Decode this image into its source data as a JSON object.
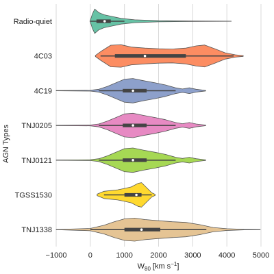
{
  "chart_data": {
    "type": "violin",
    "orientation": "horizontal",
    "xlabel_main": "W",
    "xlabel_sub": "80",
    "xlabel_unit": "[km s",
    "xlabel_exp": "−1",
    "xlabel_close": "]",
    "ylabel": "AGN Types",
    "xlim": [
      -1000,
      5000
    ],
    "xticks": [
      {
        "value": -1000,
        "label": "−1000"
      },
      {
        "value": 0,
        "label": "0"
      },
      {
        "value": 1000,
        "label": "1000"
      },
      {
        "value": 2000,
        "label": "2000"
      },
      {
        "value": 3000,
        "label": "3000"
      },
      {
        "value": 4000,
        "label": "4000"
      },
      {
        "value": 5000,
        "label": "5000"
      }
    ],
    "grid": true,
    "series": [
      {
        "name": "Radio-quiet",
        "color": "#66c2a5",
        "line_range": [
          -20,
          4130
        ],
        "whisker": [
          0,
          1000
        ],
        "iqr": [
          180,
          600
        ],
        "median": 420,
        "density": [
          [
            0,
            0.05
          ],
          [
            60,
            0.5
          ],
          [
            130,
            0.85
          ],
          [
            250,
            0.6
          ],
          [
            400,
            0.45
          ],
          [
            600,
            0.35
          ],
          [
            900,
            0.2
          ],
          [
            1300,
            0.1
          ],
          [
            2000,
            0.04
          ],
          [
            3000,
            0.015
          ],
          [
            4130,
            0.005
          ]
        ]
      },
      {
        "name": "4C03",
        "color": "#fc8d62",
        "line_range": [
          140,
          4480
        ],
        "whisker": [
          300,
          4200
        ],
        "iqr": [
          720,
          2800
        ],
        "median": 1600,
        "density": [
          [
            150,
            0.04
          ],
          [
            300,
            0.3
          ],
          [
            600,
            0.75
          ],
          [
            900,
            0.78
          ],
          [
            1200,
            0.62
          ],
          [
            1600,
            0.55
          ],
          [
            2000,
            0.5
          ],
          [
            2400,
            0.48
          ],
          [
            2800,
            0.55
          ],
          [
            3100,
            0.7
          ],
          [
            3350,
            0.76
          ],
          [
            3650,
            0.5
          ],
          [
            3950,
            0.22
          ],
          [
            4250,
            0.08
          ],
          [
            4480,
            0.03
          ]
        ]
      },
      {
        "name": "4C19",
        "color": "#8da0cb",
        "line_range": [
          -1000,
          3380
        ],
        "whisker": [
          250,
          2500
        ],
        "iqr": [
          950,
          1650
        ],
        "median": 1250,
        "density": [
          [
            -1000,
            0.01
          ],
          [
            0,
            0.03
          ],
          [
            250,
            0.1
          ],
          [
            500,
            0.3
          ],
          [
            750,
            0.55
          ],
          [
            1000,
            0.8
          ],
          [
            1250,
            0.85
          ],
          [
            1550,
            0.7
          ],
          [
            1900,
            0.55
          ],
          [
            2200,
            0.4
          ],
          [
            2500,
            0.2
          ],
          [
            2700,
            0.12
          ],
          [
            2900,
            0.2
          ],
          [
            3100,
            0.1
          ],
          [
            3380,
            0.02
          ]
        ]
      },
      {
        "name": "TNJ0205",
        "color": "#e78ac3",
        "line_range": [
          -1000,
          3380
        ],
        "whisker": [
          250,
          2500
        ],
        "iqr": [
          950,
          1650
        ],
        "median": 1250,
        "density": [
          [
            -1000,
            0.01
          ],
          [
            0,
            0.03
          ],
          [
            250,
            0.1
          ],
          [
            500,
            0.3
          ],
          [
            750,
            0.55
          ],
          [
            1000,
            0.8
          ],
          [
            1250,
            0.85
          ],
          [
            1550,
            0.7
          ],
          [
            1900,
            0.55
          ],
          [
            2200,
            0.4
          ],
          [
            2500,
            0.2
          ],
          [
            2700,
            0.12
          ],
          [
            2900,
            0.2
          ],
          [
            3100,
            0.1
          ],
          [
            3380,
            0.02
          ]
        ]
      },
      {
        "name": "TNJ0121",
        "color": "#a6d854",
        "line_range": [
          -1000,
          3380
        ],
        "whisker": [
          250,
          2500
        ],
        "iqr": [
          950,
          1650
        ],
        "median": 1250,
        "density": [
          [
            -1000,
            0.01
          ],
          [
            0,
            0.03
          ],
          [
            250,
            0.1
          ],
          [
            500,
            0.3
          ],
          [
            750,
            0.55
          ],
          [
            1000,
            0.8
          ],
          [
            1250,
            0.85
          ],
          [
            1550,
            0.7
          ],
          [
            1900,
            0.55
          ],
          [
            2200,
            0.4
          ],
          [
            2500,
            0.2
          ],
          [
            2700,
            0.12
          ],
          [
            2900,
            0.2
          ],
          [
            3100,
            0.1
          ],
          [
            3380,
            0.02
          ]
        ]
      },
      {
        "name": "TGSS1530",
        "color": "#ffd92f",
        "line_range": [
          200,
          1900
        ],
        "whisker": [
          400,
          1800
        ],
        "iqr": [
          1000,
          1500
        ],
        "median": 1350,
        "density": [
          [
            200,
            0.05
          ],
          [
            400,
            0.25
          ],
          [
            600,
            0.3
          ],
          [
            800,
            0.35
          ],
          [
            1000,
            0.45
          ],
          [
            1200,
            0.55
          ],
          [
            1400,
            0.8
          ],
          [
            1500,
            0.85
          ],
          [
            1650,
            0.5
          ],
          [
            1800,
            0.15
          ],
          [
            1900,
            0.04
          ]
        ]
      },
      {
        "name": "TNJ1338",
        "color": "#e5c494",
        "line_range": [
          -1000,
          4980
        ],
        "whisker": [
          0,
          3400
        ],
        "iqr": [
          1000,
          2050
        ],
        "median": 1500,
        "density": [
          [
            -1000,
            0.01
          ],
          [
            0,
            0.08
          ],
          [
            400,
            0.3
          ],
          [
            700,
            0.55
          ],
          [
            1000,
            0.75
          ],
          [
            1300,
            0.8
          ],
          [
            1600,
            0.7
          ],
          [
            2000,
            0.62
          ],
          [
            2400,
            0.55
          ],
          [
            2800,
            0.5
          ],
          [
            3200,
            0.35
          ],
          [
            3600,
            0.15
          ],
          [
            4000,
            0.06
          ],
          [
            4500,
            0.02
          ],
          [
            4980,
            0.005
          ]
        ]
      }
    ]
  }
}
